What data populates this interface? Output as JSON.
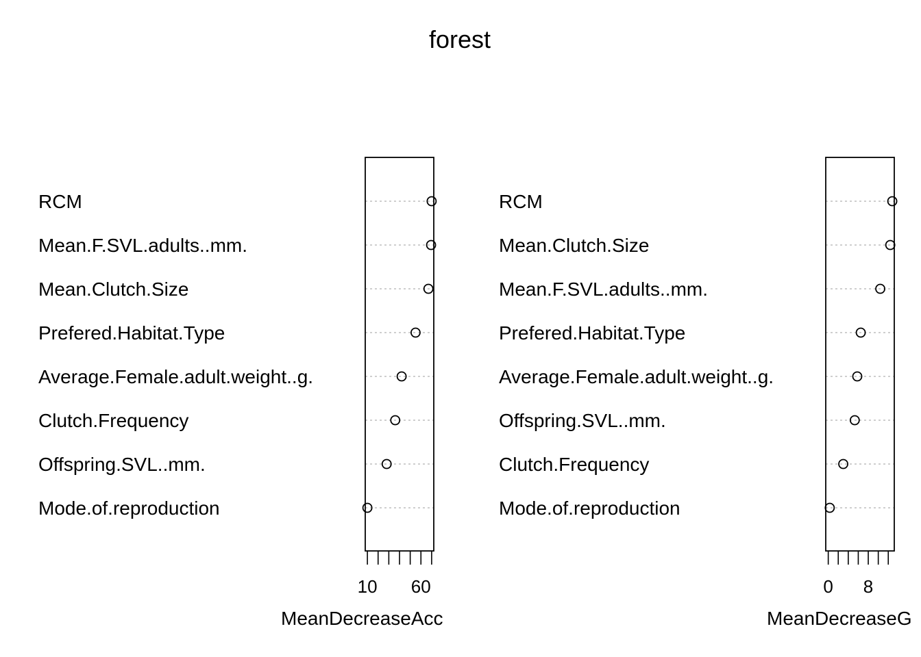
{
  "title": "forest",
  "chart_data": [
    {
      "type": "scatter",
      "xlabel": "MeanDecreaseAccuracy",
      "xlabel_shown": "MeanDecreaseAcc",
      "x_ticks": [
        10,
        20,
        30,
        40,
        50,
        60,
        70
      ],
      "x_tick_labels": [
        "10",
        "60"
      ],
      "xlim": [
        8,
        72
      ],
      "grid": "dotted-horizontal",
      "categories": [
        "RCM",
        "Mean.F.SVL.adults..mm.",
        "Mean.Clutch.Size",
        "Prefered.Habitat.Type",
        "Average.Female.adult.weight..g.",
        "Clutch.Frequency",
        "Offspring.SVL..mm.",
        "Mode.of.reproduction"
      ],
      "values": [
        70,
        69.5,
        67,
        55,
        42,
        36,
        28,
        10
      ]
    },
    {
      "type": "scatter",
      "xlabel": "MeanDecreaseGini",
      "xlabel_shown": "MeanDecreaseG",
      "x_ticks": [
        0,
        2,
        4,
        6,
        8,
        10,
        12
      ],
      "x_tick_labels": [
        "0",
        "8"
      ],
      "xlim": [
        -0.5,
        13.2
      ],
      "grid": "dotted-horizontal",
      "categories": [
        "RCM",
        "Mean.Clutch.Size",
        "Mean.F.SVL.adults..mm.",
        "Prefered.Habitat.Type",
        "Average.Female.adult.weight..g.",
        "Offspring.SVL..mm.",
        "Clutch.Frequency",
        "Mode.of.reproduction"
      ],
      "values": [
        12.8,
        12.4,
        10.4,
        6.5,
        5.8,
        5.3,
        3.0,
        0.3
      ]
    }
  ]
}
